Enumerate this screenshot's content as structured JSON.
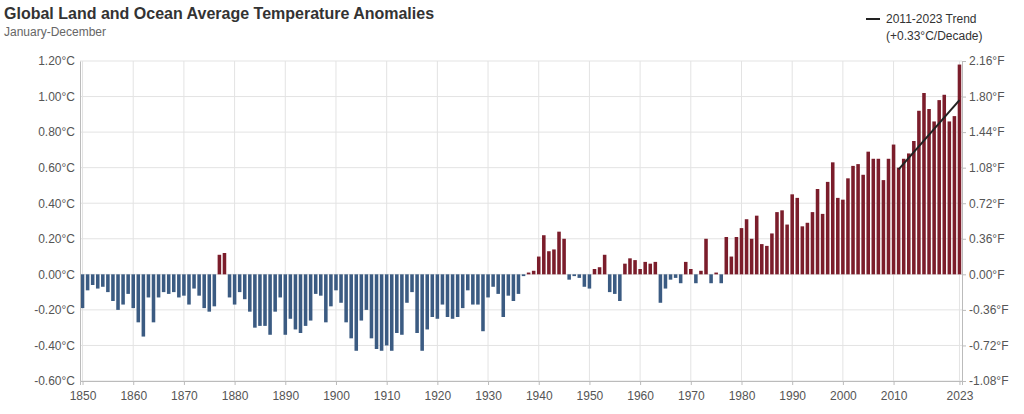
{
  "chart_data": {
    "type": "bar",
    "title": "Global Land and Ocean Average Temperature Anomalies",
    "subtitle": "January-December",
    "annotations": [
      "(+0.33°C/Decade)"
    ],
    "x": [
      1850,
      1851,
      1852,
      1853,
      1854,
      1855,
      1856,
      1857,
      1858,
      1859,
      1860,
      1861,
      1862,
      1863,
      1864,
      1865,
      1866,
      1867,
      1868,
      1869,
      1870,
      1871,
      1872,
      1873,
      1874,
      1875,
      1876,
      1877,
      1878,
      1879,
      1880,
      1881,
      1882,
      1883,
      1884,
      1885,
      1886,
      1887,
      1888,
      1889,
      1890,
      1891,
      1892,
      1893,
      1894,
      1895,
      1896,
      1897,
      1898,
      1899,
      1900,
      1901,
      1902,
      1903,
      1904,
      1905,
      1906,
      1907,
      1908,
      1909,
      1910,
      1911,
      1912,
      1913,
      1914,
      1915,
      1916,
      1917,
      1918,
      1919,
      1920,
      1921,
      1922,
      1923,
      1924,
      1925,
      1926,
      1927,
      1928,
      1929,
      1930,
      1931,
      1932,
      1933,
      1934,
      1935,
      1936,
      1937,
      1938,
      1939,
      1940,
      1941,
      1942,
      1943,
      1944,
      1945,
      1946,
      1947,
      1948,
      1949,
      1950,
      1951,
      1952,
      1953,
      1954,
      1955,
      1956,
      1957,
      1958,
      1959,
      1960,
      1961,
      1962,
      1963,
      1964,
      1965,
      1966,
      1967,
      1968,
      1969,
      1970,
      1971,
      1972,
      1973,
      1974,
      1975,
      1976,
      1977,
      1978,
      1979,
      1980,
      1981,
      1982,
      1983,
      1984,
      1985,
      1986,
      1987,
      1988,
      1989,
      1990,
      1991,
      1992,
      1993,
      1994,
      1995,
      1996,
      1997,
      1998,
      1999,
      2000,
      2001,
      2002,
      2003,
      2004,
      2005,
      2006,
      2007,
      2008,
      2009,
      2010,
      2011,
      2012,
      2013,
      2014,
      2015,
      2016,
      2017,
      2018,
      2019,
      2020,
      2021,
      2022,
      2023
    ],
    "series": [
      {
        "type": "bar",
        "values": [
          -0.19,
          -0.09,
          -0.06,
          -0.08,
          -0.07,
          -0.1,
          -0.15,
          -0.2,
          -0.17,
          -0.11,
          -0.19,
          -0.27,
          -0.35,
          -0.13,
          -0.27,
          -0.13,
          -0.1,
          -0.11,
          -0.1,
          -0.13,
          -0.12,
          -0.17,
          -0.08,
          -0.12,
          -0.19,
          -0.21,
          -0.18,
          0.11,
          0.12,
          -0.13,
          -0.17,
          -0.1,
          -0.14,
          -0.21,
          -0.3,
          -0.29,
          -0.29,
          -0.34,
          -0.21,
          -0.13,
          -0.34,
          -0.25,
          -0.31,
          -0.33,
          -0.29,
          -0.26,
          -0.11,
          -0.12,
          -0.27,
          -0.18,
          -0.09,
          -0.16,
          -0.27,
          -0.36,
          -0.43,
          -0.26,
          -0.2,
          -0.36,
          -0.42,
          -0.43,
          -0.4,
          -0.43,
          -0.33,
          -0.34,
          -0.16,
          -0.1,
          -0.33,
          -0.43,
          -0.31,
          -0.24,
          -0.25,
          -0.17,
          -0.24,
          -0.25,
          -0.24,
          -0.19,
          -0.09,
          -0.17,
          -0.17,
          -0.32,
          -0.13,
          -0.07,
          -0.11,
          -0.24,
          -0.12,
          -0.15,
          -0.11,
          -0.01,
          0.01,
          0.02,
          0.1,
          0.22,
          0.13,
          0.14,
          0.24,
          0.2,
          -0.03,
          -0.01,
          -0.02,
          -0.07,
          -0.08,
          0.03,
          0.04,
          0.11,
          -0.1,
          -0.11,
          -0.15,
          0.06,
          0.09,
          0.08,
          0.03,
          0.07,
          0.06,
          0.07,
          -0.16,
          -0.08,
          -0.03,
          -0.02,
          -0.05,
          0.07,
          0.03,
          -0.05,
          0.02,
          0.2,
          -0.05,
          0.01,
          -0.05,
          0.21,
          0.1,
          0.21,
          0.26,
          0.31,
          0.2,
          0.33,
          0.17,
          0.16,
          0.23,
          0.35,
          0.36,
          0.28,
          0.45,
          0.43,
          0.27,
          0.29,
          0.35,
          0.48,
          0.34,
          0.52,
          0.63,
          0.43,
          0.42,
          0.54,
          0.61,
          0.62,
          0.56,
          0.69,
          0.65,
          0.65,
          0.53,
          0.65,
          0.73,
          0.6,
          0.65,
          0.68,
          0.75,
          0.92,
          1.02,
          0.93,
          0.86,
          0.98,
          1.01,
          0.86,
          0.89,
          1.18
        ],
        "colors": [
          "#3b5b82",
          "#3b5b82",
          "#3b5b82",
          "#3b5b82",
          "#3b5b82",
          "#3b5b82",
          "#3b5b82",
          "#3b5b82",
          "#3b5b82",
          "#3b5b82",
          "#3b5b82",
          "#3b5b82",
          "#3b5b82",
          "#3b5b82",
          "#3b5b82",
          "#3b5b82",
          "#3b5b82",
          "#3b5b82",
          "#3b5b82",
          "#3b5b82",
          "#3b5b82",
          "#3b5b82",
          "#3b5b82",
          "#3b5b82",
          "#3b5b82",
          "#3b5b82",
          "#3b5b82",
          "#7b1d2b",
          "#7b1d2b",
          "#3b5b82",
          "#3b5b82",
          "#3b5b82",
          "#3b5b82",
          "#3b5b82",
          "#3b5b82",
          "#3b5b82",
          "#3b5b82",
          "#3b5b82",
          "#3b5b82",
          "#3b5b82",
          "#3b5b82",
          "#3b5b82",
          "#3b5b82",
          "#3b5b82",
          "#3b5b82",
          "#3b5b82",
          "#3b5b82",
          "#3b5b82",
          "#3b5b82",
          "#3b5b82",
          "#3b5b82",
          "#3b5b82",
          "#3b5b82",
          "#3b5b82",
          "#3b5b82",
          "#3b5b82",
          "#3b5b82",
          "#3b5b82",
          "#3b5b82",
          "#3b5b82",
          "#3b5b82",
          "#3b5b82",
          "#3b5b82",
          "#3b5b82",
          "#3b5b82",
          "#3b5b82",
          "#3b5b82",
          "#3b5b82",
          "#3b5b82",
          "#3b5b82",
          "#3b5b82",
          "#3b5b82",
          "#3b5b82",
          "#3b5b82",
          "#3b5b82",
          "#3b5b82",
          "#3b5b82",
          "#3b5b82",
          "#3b5b82",
          "#3b5b82",
          "#3b5b82",
          "#3b5b82",
          "#3b5b82",
          "#3b5b82",
          "#3b5b82",
          "#3b5b82",
          "#3b5b82",
          "#3b5b82",
          "#7b1d2b",
          "#7b1d2b",
          "#7b1d2b",
          "#7b1d2b",
          "#7b1d2b",
          "#7b1d2b",
          "#7b1d2b",
          "#7b1d2b",
          "#3b5b82",
          "#3b5b82",
          "#3b5b82",
          "#3b5b82",
          "#3b5b82",
          "#7b1d2b",
          "#7b1d2b",
          "#7b1d2b",
          "#3b5b82",
          "#3b5b82",
          "#3b5b82",
          "#7b1d2b",
          "#7b1d2b",
          "#7b1d2b",
          "#7b1d2b",
          "#7b1d2b",
          "#7b1d2b",
          "#7b1d2b",
          "#3b5b82",
          "#3b5b82",
          "#3b5b82",
          "#3b5b82",
          "#3b5b82",
          "#7b1d2b",
          "#7b1d2b",
          "#3b5b82",
          "#7b1d2b",
          "#7b1d2b",
          "#3b5b82",
          "#7b1d2b",
          "#3b5b82",
          "#7b1d2b",
          "#7b1d2b",
          "#7b1d2b",
          "#7b1d2b",
          "#7b1d2b",
          "#7b1d2b",
          "#7b1d2b",
          "#7b1d2b",
          "#7b1d2b",
          "#7b1d2b",
          "#7b1d2b",
          "#7b1d2b",
          "#7b1d2b",
          "#7b1d2b",
          "#7b1d2b",
          "#7b1d2b",
          "#7b1d2b",
          "#7b1d2b",
          "#7b1d2b",
          "#7b1d2b",
          "#7b1d2b",
          "#7b1d2b",
          "#7b1d2b",
          "#7b1d2b",
          "#7b1d2b",
          "#7b1d2b",
          "#7b1d2b",
          "#7b1d2b",
          "#7b1d2b",
          "#7b1d2b",
          "#7b1d2b",
          "#7b1d2b",
          "#7b1d2b",
          "#7b1d2b",
          "#7b1d2b",
          "#7b1d2b",
          "#7b1d2b",
          "#7b1d2b",
          "#7b1d2b",
          "#7b1d2b",
          "#7b1d2b",
          "#7b1d2b",
          "#7b1d2b",
          "#7b1d2b",
          "#7b1d2b",
          "#7b1d2b",
          "#7b1d2b"
        ]
      },
      {
        "type": "line",
        "name": "2011-2023 Trend",
        "color": "#222222",
        "x": [
          2011,
          2023
        ],
        "values": [
          0.59,
          0.98
        ]
      }
    ],
    "xlim": [
      1849.5,
      2023.5
    ],
    "xticks": [
      1850,
      1860,
      1870,
      1880,
      1890,
      1900,
      1910,
      1920,
      1930,
      1940,
      1950,
      1960,
      1970,
      1980,
      1990,
      2000,
      2010,
      2023
    ],
    "ylim": [
      -0.6,
      1.2
    ],
    "yticks": [
      {
        "value": -0.6,
        "label": "-0.60°C"
      },
      {
        "value": -0.4,
        "label": "-0.40°C"
      },
      {
        "value": -0.2,
        "label": "-0.20°C"
      },
      {
        "value": 0,
        "label": "0.00°C"
      },
      {
        "value": 0.2,
        "label": "0.20°C"
      },
      {
        "value": 0.4,
        "label": "0.40°C"
      },
      {
        "value": 0.6,
        "label": "0.60°C"
      },
      {
        "value": 0.8,
        "label": "0.80°C"
      },
      {
        "value": 1.0,
        "label": "1.00°C"
      },
      {
        "value": 1.2,
        "label": "1.20°C"
      }
    ],
    "y2lim": [
      -1.08,
      2.16
    ],
    "y2ticks": [
      {
        "value": -1.08,
        "label": "-1.08°F"
      },
      {
        "value": -0.72,
        "label": "-0.72°F"
      },
      {
        "value": -0.36,
        "label": "-0.36°F"
      },
      {
        "value": 0,
        "label": "0.00°F"
      },
      {
        "value": 0.36,
        "label": "0.36°F"
      },
      {
        "value": 0.72,
        "label": "0.72°F"
      },
      {
        "value": 1.08,
        "label": "1.08°F"
      },
      {
        "value": 1.44,
        "label": "1.44°F"
      },
      {
        "value": 1.8,
        "label": "1.80°F"
      },
      {
        "value": 2.16,
        "label": "2.16°F"
      }
    ],
    "grid": true,
    "legend": "top-right"
  }
}
